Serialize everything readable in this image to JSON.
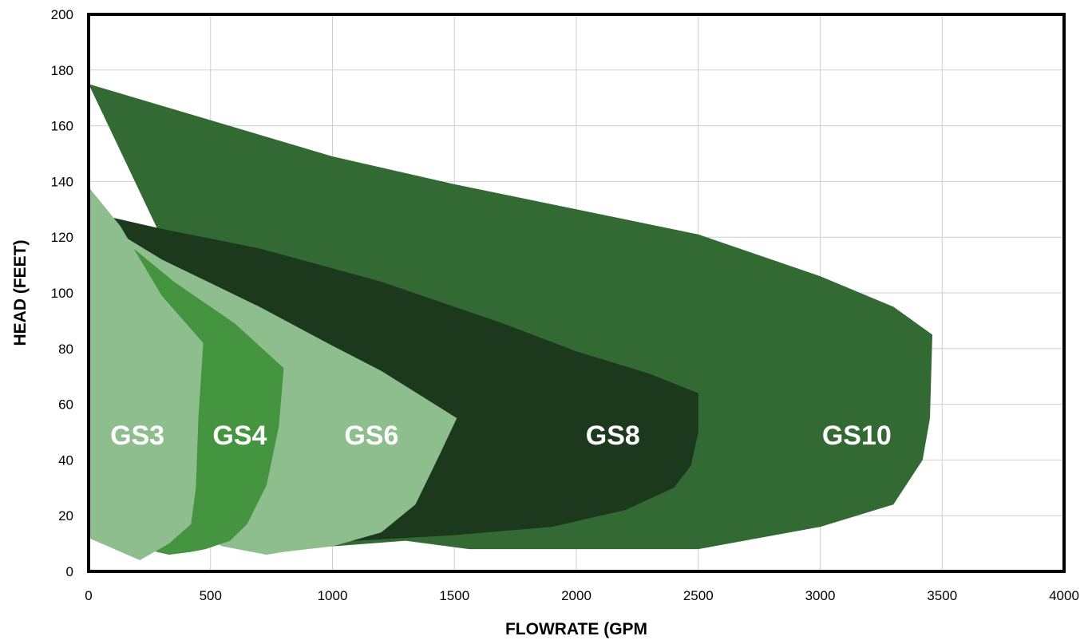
{
  "chart_data": {
    "type": "area",
    "title": "",
    "xlabel": "FLOWRATE (GPM",
    "ylabel": "HEAD (FEET)",
    "xlim": [
      0,
      4000
    ],
    "ylim": [
      0,
      200
    ],
    "x_ticks": [
      "0",
      "500",
      "1000",
      "1500",
      "2000",
      "2500",
      "3000",
      "3500",
      "4000"
    ],
    "y_ticks": [
      "0",
      "20",
      "40",
      "60",
      "80",
      "100",
      "120",
      "140",
      "160",
      "180",
      "200"
    ],
    "grid": true,
    "series": [
      {
        "name": "GS10",
        "color": "#336a34",
        "label_at": [
          3150,
          49
        ],
        "points": [
          [
            0,
            175
          ],
          [
            500,
            162
          ],
          [
            1000,
            149
          ],
          [
            1500,
            139
          ],
          [
            2000,
            130
          ],
          [
            2500,
            121
          ],
          [
            3000,
            106
          ],
          [
            3300,
            95
          ],
          [
            3460,
            85
          ],
          [
            3450,
            55
          ],
          [
            3420,
            40
          ],
          [
            3300,
            24
          ],
          [
            3000,
            16
          ],
          [
            2500,
            8
          ],
          [
            2000,
            8
          ],
          [
            1560,
            8
          ],
          [
            1300,
            11
          ],
          [
            1000,
            9
          ],
          [
            900,
            9
          ]
        ]
      },
      {
        "name": "GS8",
        "color": "#1d391d",
        "label_at": [
          2150,
          49
        ],
        "points": [
          [
            0,
            129
          ],
          [
            300,
            123
          ],
          [
            700,
            116
          ],
          [
            1200,
            104
          ],
          [
            1700,
            89
          ],
          [
            2000,
            79
          ],
          [
            2300,
            71
          ],
          [
            2500,
            64
          ],
          [
            2500,
            50
          ],
          [
            2470,
            38
          ],
          [
            2400,
            30
          ],
          [
            2200,
            22
          ],
          [
            1900,
            16
          ],
          [
            1500,
            13
          ],
          [
            1100,
            11
          ],
          [
            800,
            11
          ]
        ]
      },
      {
        "name": "GS6",
        "color": "#8ebe8e",
        "label_at": [
          1160,
          49
        ],
        "points": [
          [
            0,
            128
          ],
          [
            300,
            112
          ],
          [
            700,
            95
          ],
          [
            1000,
            81
          ],
          [
            1200,
            72
          ],
          [
            1510,
            55
          ],
          [
            1440,
            42
          ],
          [
            1340,
            24
          ],
          [
            1200,
            14
          ],
          [
            1000,
            9
          ],
          [
            800,
            7
          ],
          [
            730,
            6
          ],
          [
            550,
            9
          ],
          [
            500,
            11
          ]
        ]
      },
      {
        "name": "GS4",
        "color": "#45943f",
        "label_at": [
          620,
          49
        ],
        "points": [
          [
            100,
            122
          ],
          [
            350,
            104
          ],
          [
            600,
            89
          ],
          [
            800,
            73
          ],
          [
            780,
            52
          ],
          [
            730,
            31
          ],
          [
            650,
            17
          ],
          [
            580,
            11
          ],
          [
            480,
            8
          ],
          [
            420,
            7
          ],
          [
            330,
            6
          ],
          [
            280,
            7
          ],
          [
            200,
            9
          ]
        ]
      },
      {
        "name": "GS3",
        "color": "#8ebe8e",
        "label_at": [
          200,
          49
        ],
        "points": [
          [
            0,
            138
          ],
          [
            130,
            124
          ],
          [
            300,
            99
          ],
          [
            470,
            82
          ],
          [
            450,
            55
          ],
          [
            440,
            30
          ],
          [
            420,
            17
          ],
          [
            330,
            10
          ],
          [
            210,
            4
          ],
          [
            0,
            12
          ]
        ]
      }
    ]
  }
}
